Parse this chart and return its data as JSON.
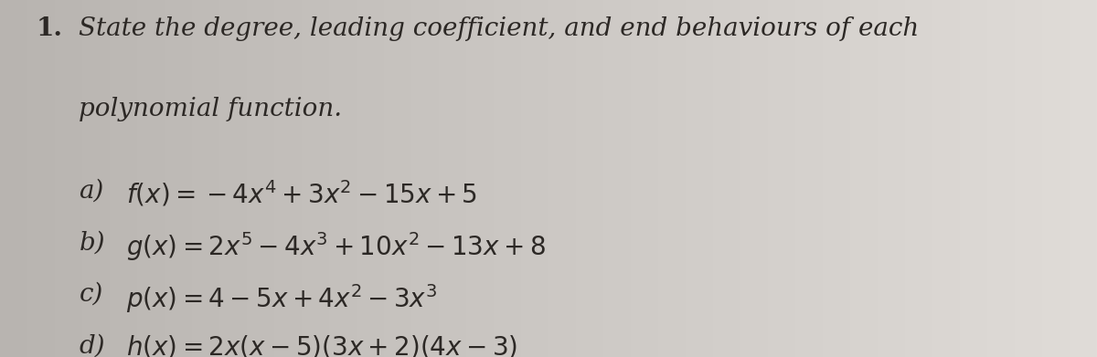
{
  "bg_color": "#c8c4c0",
  "bg_color2": "#e0ddd9",
  "text_color": "#2c2825",
  "title_number": "1.",
  "title_line1": "State the degree, leading coefficient, and end behaviours of each",
  "title_line2": "polynomial function.",
  "items": [
    {
      "label": "a)",
      "formula": "$f(x) = -4x^4 + 3x^2 - 15x + 5$"
    },
    {
      "label": "b)",
      "formula": "$g(x) = 2x^5 - 4x^3 + 10x^2 - 13x + 8$"
    },
    {
      "label": "c)",
      "formula": "$p(x) = 4 - 5x + 4x^2 - 3x^3$"
    },
    {
      "label": "d)",
      "formula": "$h(x) = 2x(x - 5)(3x + 2)(4x - 3)$"
    }
  ],
  "figsize": [
    12.0,
    3.91
  ],
  "dpi": 100,
  "fs_number": 20,
  "fs_title": 20,
  "fs_formula": 20
}
